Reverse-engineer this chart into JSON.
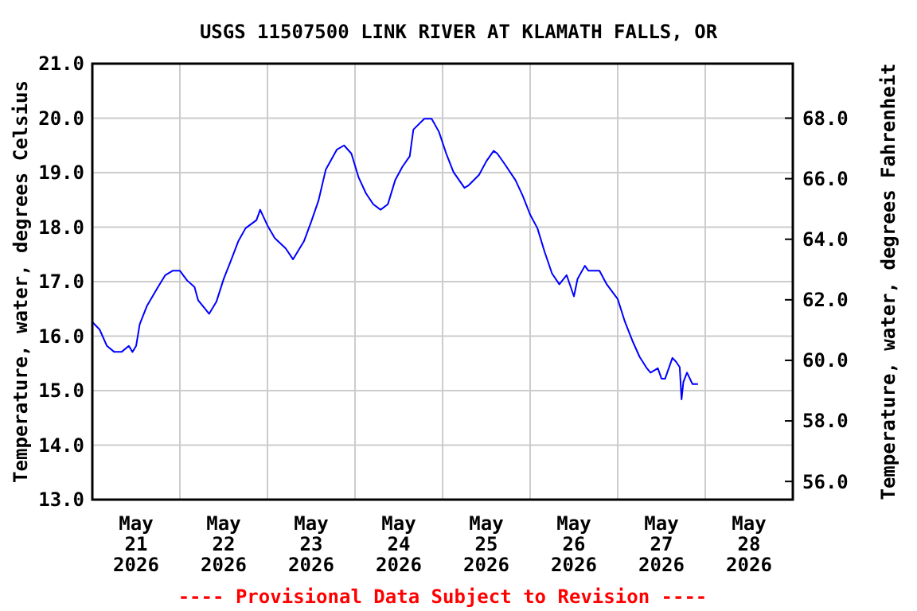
{
  "chart_data": {
    "type": "line",
    "title": "USGS 11507500 LINK RIVER AT KLAMATH FALLS, OR",
    "ylabel": "Temperature, water, degrees Celsius",
    "y2label": "Temperature, water, degrees Fahrenheit",
    "annotations": [
      "---- Provisional Data Subject to Revision ----"
    ],
    "x": [
      "2026-05-21T00:00",
      "2026-05-21T02:00",
      "2026-05-21T04:00",
      "2026-05-21T06:00",
      "2026-05-21T08:00",
      "2026-05-21T10:00",
      "2026-05-21T11:00",
      "2026-05-21T12:00",
      "2026-05-21T13:00",
      "2026-05-21T15:00",
      "2026-05-21T18:00",
      "2026-05-21T20:00",
      "2026-05-21T22:00",
      "2026-05-22T00:00",
      "2026-05-22T02:00",
      "2026-05-22T04:00",
      "2026-05-22T05:00",
      "2026-05-22T08:00",
      "2026-05-22T10:00",
      "2026-05-22T12:00",
      "2026-05-22T14:00",
      "2026-05-22T16:00",
      "2026-05-22T18:00",
      "2026-05-22T21:00",
      "2026-05-22T22:00",
      "2026-05-23T00:00",
      "2026-05-23T02:00",
      "2026-05-23T05:00",
      "2026-05-23T07:00",
      "2026-05-23T10:00",
      "2026-05-23T12:00",
      "2026-05-23T14:00",
      "2026-05-23T16:00",
      "2026-05-23T18:00",
      "2026-05-23T19:00",
      "2026-05-23T21:00",
      "2026-05-23T23:00",
      "2026-05-24T01:00",
      "2026-05-24T03:00",
      "2026-05-24T05:00",
      "2026-05-24T07:00",
      "2026-05-24T09:00",
      "2026-05-24T11:00",
      "2026-05-24T13:00",
      "2026-05-24T15:00",
      "2026-05-24T16:00",
      "2026-05-24T19:00",
      "2026-05-24T21:00",
      "2026-05-24T23:00",
      "2026-05-25T01:00",
      "2026-05-25T03:00",
      "2026-05-25T06:00",
      "2026-05-25T07:00",
      "2026-05-25T10:00",
      "2026-05-25T12:00",
      "2026-05-25T14:00",
      "2026-05-25T15:00",
      "2026-05-25T17:00",
      "2026-05-25T20:00",
      "2026-05-25T22:00",
      "2026-05-26T00:00",
      "2026-05-26T02:00",
      "2026-05-26T04:00",
      "2026-05-26T06:00",
      "2026-05-26T08:00",
      "2026-05-26T10:00",
      "2026-05-26T12:00",
      "2026-05-26T13:00",
      "2026-05-26T15:00",
      "2026-05-26T16:00",
      "2026-05-26T19:00",
      "2026-05-26T21:00",
      "2026-05-27T00:00",
      "2026-05-27T02:00",
      "2026-05-27T04:00",
      "2026-05-27T06:00",
      "2026-05-27T08:00",
      "2026-05-27T09:00",
      "2026-05-27T11:00",
      "2026-05-27T12:00",
      "2026-05-27T13:00",
      "2026-05-27T14:00",
      "2026-05-27T15:00",
      "2026-05-27T16:00",
      "2026-05-27T17:00",
      "2026-05-27T17:30",
      "2026-05-27T18:00",
      "2026-05-27T19:00",
      "2026-05-27T20:30",
      "2026-05-27T22:00"
    ],
    "series": [
      {
        "color": "#0000ff",
        "values": [
          16.26,
          16.12,
          15.82,
          15.71,
          15.71,
          15.82,
          15.71,
          15.82,
          16.22,
          16.56,
          16.9,
          17.12,
          17.2,
          17.2,
          17.02,
          16.9,
          16.66,
          16.41,
          16.63,
          17.05,
          17.39,
          17.74,
          17.98,
          18.13,
          18.32,
          18.03,
          17.8,
          17.61,
          17.41,
          17.74,
          18.1,
          18.49,
          19.06,
          19.3,
          19.42,
          19.5,
          19.35,
          18.91,
          18.62,
          18.42,
          18.32,
          18.42,
          18.86,
          19.11,
          19.3,
          19.79,
          19.99,
          19.99,
          19.75,
          19.35,
          19.01,
          18.72,
          18.76,
          18.96,
          19.21,
          19.4,
          19.35,
          19.16,
          18.86,
          18.57,
          18.23,
          17.98,
          17.54,
          17.15,
          16.95,
          17.12,
          16.73,
          17.05,
          17.29,
          17.2,
          17.2,
          16.95,
          16.68,
          16.26,
          15.92,
          15.62,
          15.41,
          15.33,
          15.41,
          15.22,
          15.22,
          15.41,
          15.6,
          15.53,
          15.43,
          14.84,
          15.16,
          15.33,
          15.12,
          15.12
        ]
      }
    ],
    "xlim": [
      "2026-05-21T00:00",
      "2026-05-29T00:00"
    ],
    "xticks": [
      {
        "value": "2026-05-21T12:00",
        "label": "May\n21\n2026"
      },
      {
        "value": "2026-05-22T00:00",
        "label": null
      },
      {
        "value": "2026-05-22T12:00",
        "label": "May\n22\n2026"
      },
      {
        "value": "2026-05-23T00:00",
        "label": null
      },
      {
        "value": "2026-05-23T12:00",
        "label": "May\n23\n2026"
      },
      {
        "value": "2026-05-24T00:00",
        "label": null
      },
      {
        "value": "2026-05-24T12:00",
        "label": "May\n24\n2026"
      },
      {
        "value": "2026-05-25T00:00",
        "label": null
      },
      {
        "value": "2026-05-25T12:00",
        "label": "May\n25\n2026"
      },
      {
        "value": "2026-05-26T00:00",
        "label": null
      },
      {
        "value": "2026-05-26T12:00",
        "label": "May\n26\n2026"
      },
      {
        "value": "2026-05-27T00:00",
        "label": null
      },
      {
        "value": "2026-05-27T12:00",
        "label": "May\n27\n2026"
      },
      {
        "value": "2026-05-28T00:00",
        "label": null
      },
      {
        "value": "2026-05-28T12:00",
        "label": "May\n28\n2026"
      }
    ],
    "ylim": [
      13,
      21
    ],
    "yticks": [
      {
        "value": 13,
        "label": "13.0"
      },
      {
        "value": 14,
        "label": "14.0"
      },
      {
        "value": 15,
        "label": "15.0"
      },
      {
        "value": 16,
        "label": "16.0"
      },
      {
        "value": 17,
        "label": "17.0"
      },
      {
        "value": 18,
        "label": "18.0"
      },
      {
        "value": 19,
        "label": "19.0"
      },
      {
        "value": 20,
        "label": "20.0"
      },
      {
        "value": 21,
        "label": "21.0"
      }
    ],
    "y2lim": [
      55.4,
      69.8
    ],
    "y2ticks": [
      {
        "value": 56,
        "label": "56.0"
      },
      {
        "value": 58,
        "label": "58.0"
      },
      {
        "value": 60,
        "label": "60.0"
      },
      {
        "value": 62,
        "label": "62.0"
      },
      {
        "value": 64,
        "label": "64.0"
      },
      {
        "value": 66,
        "label": "66.0"
      },
      {
        "value": 68,
        "label": "68.0"
      }
    ],
    "grid": true,
    "line_style": "solid",
    "marker": "none"
  }
}
